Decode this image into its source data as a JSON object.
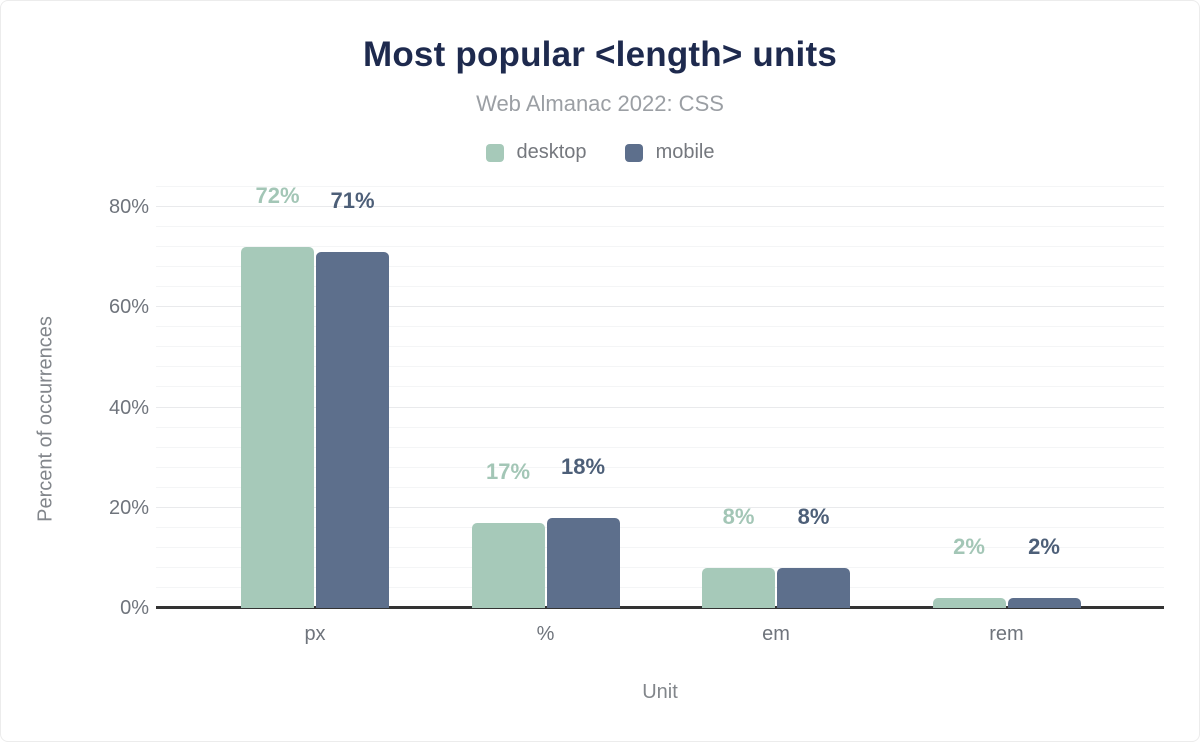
{
  "chart": {
    "title": "Most popular <length> units",
    "subtitle": "Web Almanac 2022: CSS",
    "x_axis_title": "Unit",
    "y_axis_title": "Percent of occurrences"
  },
  "chart_data": {
    "type": "bar",
    "categories": [
      "px",
      "%",
      "em",
      "rem"
    ],
    "series": [
      {
        "name": "desktop",
        "values": [
          72,
          17,
          8,
          2
        ],
        "color": "#a6c9b9",
        "label_color": "#a3c6b6"
      },
      {
        "name": "mobile",
        "values": [
          71,
          18,
          8,
          2
        ],
        "color": "#5d6f8c",
        "label_color": "#4d5f78"
      }
    ],
    "value_suffix": "%",
    "ylim": [
      0,
      80
    ],
    "y_tick_labels": [
      "0%",
      "20%",
      "40%",
      "60%",
      "80%"
    ],
    "grid": {
      "major_step": 20,
      "minor_step": 4,
      "minor_max": 84
    },
    "legend_position": "top",
    "colors": {
      "title": "#1e2a4e",
      "subtitle": "#9b9fa4",
      "tick_text": "#6f747c",
      "axis_title_text": "#82868b",
      "baseline": "#333333"
    }
  }
}
